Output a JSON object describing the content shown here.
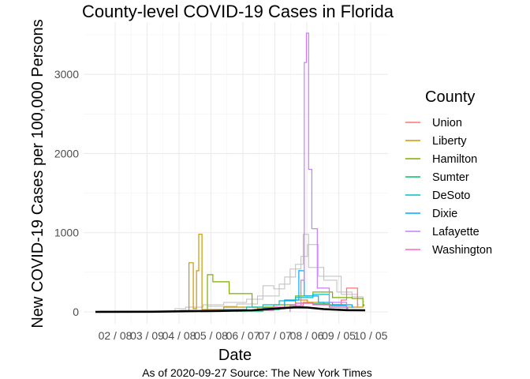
{
  "chart_data": {
    "type": "line",
    "title": "County-level COVID-19 Cases in Florida",
    "xlabel": "Date",
    "ylabel": "New COVID-19 Cases per 100,000 Persons",
    "caption": "As of 2020-09-27 Source: The New York Times",
    "x_ticks": [
      "02 / 08",
      "03 / 09",
      "04 / 08",
      "05 / 08",
      "06 / 07",
      "07 / 07",
      "08 / 06",
      "09 / 05",
      "10 / 05"
    ],
    "y_ticks": [
      0,
      1000,
      2000,
      3000
    ],
    "xlim": [
      "2020-01-23",
      "2020-10-05"
    ],
    "ylim": [
      0,
      3520
    ],
    "grid": true,
    "legend_title": "County",
    "legend_position": "right",
    "background_series_color": "#bebebe",
    "series": [
      {
        "name": "Union",
        "color": "#F8766D",
        "points": [
          [
            "2020-04-20",
            10
          ],
          [
            "2020-05-10",
            25
          ],
          [
            "2020-06-10",
            20
          ],
          [
            "2020-07-05",
            60
          ],
          [
            "2020-07-20",
            80
          ],
          [
            "2020-08-01",
            120
          ],
          [
            "2020-08-10",
            100
          ],
          [
            "2020-08-25",
            90
          ],
          [
            "2020-09-05",
            150
          ],
          [
            "2020-09-10",
            300
          ],
          [
            "2020-09-20",
            60
          ]
        ]
      },
      {
        "name": "Liberty",
        "color": "#CD9600",
        "points": [
          [
            "2020-04-18",
            620
          ],
          [
            "2020-04-22",
            40
          ],
          [
            "2020-04-25",
            520
          ],
          [
            "2020-04-27",
            980
          ],
          [
            "2020-04-30",
            30
          ],
          [
            "2020-05-20",
            60
          ],
          [
            "2020-06-20",
            40
          ],
          [
            "2020-07-15",
            150
          ],
          [
            "2020-08-05",
            120
          ],
          [
            "2020-08-20",
            90
          ],
          [
            "2020-09-10",
            60
          ],
          [
            "2020-09-25",
            90
          ]
        ]
      },
      {
        "name": "Hamilton",
        "color": "#7CAE00",
        "points": [
          [
            "2020-05-05",
            470
          ],
          [
            "2020-05-10",
            380
          ],
          [
            "2020-05-25",
            230
          ],
          [
            "2020-06-15",
            60
          ],
          [
            "2020-07-05",
            90
          ],
          [
            "2020-07-25",
            200
          ],
          [
            "2020-08-10",
            250
          ],
          [
            "2020-08-28",
            180
          ],
          [
            "2020-09-15",
            170
          ],
          [
            "2020-09-25",
            80
          ]
        ]
      },
      {
        "name": "Sumter",
        "color": "#00BE67",
        "points": [
          [
            "2020-06-01",
            10
          ],
          [
            "2020-06-25",
            30
          ],
          [
            "2020-07-10",
            50
          ],
          [
            "2020-07-25",
            110
          ],
          [
            "2020-08-10",
            100
          ],
          [
            "2020-08-25",
            60
          ],
          [
            "2020-09-10",
            40
          ]
        ]
      },
      {
        "name": "DeSoto",
        "color": "#00BFC4",
        "points": [
          [
            "2020-05-20",
            30
          ],
          [
            "2020-06-10",
            60
          ],
          [
            "2020-06-25",
            90
          ],
          [
            "2020-07-10",
            140
          ],
          [
            "2020-07-25",
            180
          ],
          [
            "2020-08-10",
            220
          ],
          [
            "2020-08-25",
            80
          ],
          [
            "2020-09-10",
            50
          ]
        ]
      },
      {
        "name": "Dixie",
        "color": "#00A9FF",
        "points": [
          [
            "2020-06-05",
            20
          ],
          [
            "2020-06-25",
            50
          ],
          [
            "2020-07-15",
            150
          ],
          [
            "2020-07-28",
            520
          ],
          [
            "2020-08-02",
            200
          ],
          [
            "2020-08-15",
            120
          ],
          [
            "2020-08-28",
            90
          ],
          [
            "2020-09-15",
            60
          ]
        ]
      },
      {
        "name": "Lafayette",
        "color": "#C77CFF",
        "points": [
          [
            "2020-07-20",
            80
          ],
          [
            "2020-07-30",
            400
          ],
          [
            "2020-08-02",
            3150
          ],
          [
            "2020-08-04",
            3520
          ],
          [
            "2020-08-06",
            1800
          ],
          [
            "2020-08-09",
            1050
          ],
          [
            "2020-08-14",
            300
          ],
          [
            "2020-08-25",
            120
          ],
          [
            "2020-09-10",
            60
          ]
        ]
      },
      {
        "name": "Washington",
        "color": "#FF61CC",
        "points": [
          [
            "2020-06-15",
            20
          ],
          [
            "2020-07-05",
            60
          ],
          [
            "2020-07-25",
            110
          ],
          [
            "2020-08-10",
            90
          ],
          [
            "2020-08-25",
            60
          ],
          [
            "2020-09-10",
            40
          ]
        ]
      }
    ],
    "background_series": [
      {
        "points": [
          [
            "2020-04-05",
            40
          ],
          [
            "2020-04-15",
            60
          ],
          [
            "2020-05-01",
            90
          ],
          [
            "2020-05-20",
            120
          ],
          [
            "2020-06-10",
            160
          ],
          [
            "2020-06-25",
            330
          ],
          [
            "2020-07-05",
            290
          ],
          [
            "2020-07-15",
            440
          ],
          [
            "2020-07-25",
            600
          ],
          [
            "2020-08-01",
            980
          ],
          [
            "2020-08-06",
            560
          ],
          [
            "2020-08-20",
            400
          ],
          [
            "2020-09-01",
            250
          ],
          [
            "2020-09-15",
            190
          ],
          [
            "2020-09-25",
            130
          ]
        ]
      },
      {
        "points": [
          [
            "2020-04-10",
            20
          ],
          [
            "2020-05-05",
            70
          ],
          [
            "2020-06-01",
            100
          ],
          [
            "2020-06-20",
            200
          ],
          [
            "2020-07-10",
            350
          ],
          [
            "2020-07-20",
            540
          ],
          [
            "2020-07-30",
            700
          ],
          [
            "2020-08-05",
            850
          ],
          [
            "2020-08-15",
            450
          ],
          [
            "2020-09-05",
            220
          ],
          [
            "2020-09-20",
            90
          ]
        ]
      }
    ],
    "trend": {
      "name": "state",
      "color": "#000000",
      "points": [
        [
          "2020-01-23",
          0
        ],
        [
          "2020-03-15",
          2
        ],
        [
          "2020-04-15",
          8
        ],
        [
          "2020-05-15",
          12
        ],
        [
          "2020-06-15",
          20
        ],
        [
          "2020-07-05",
          40
        ],
        [
          "2020-07-25",
          58
        ],
        [
          "2020-08-05",
          55
        ],
        [
          "2020-08-20",
          35
        ],
        [
          "2020-09-10",
          22
        ],
        [
          "2020-09-27",
          20
        ]
      ]
    }
  }
}
